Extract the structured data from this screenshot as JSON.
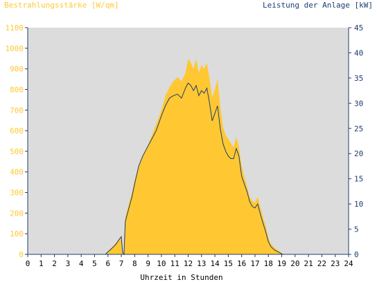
{
  "chart_data": {
    "type": "area",
    "title": "",
    "xlabel": "Uhrzeit in Stunden",
    "ylabel_left": "Bestrahlungsstärke [W/qm]",
    "ylabel_right": "Leistung der Anlage [kW]",
    "xlim": [
      0,
      24
    ],
    "ylim_left": [
      0,
      1100
    ],
    "ylim_right": [
      0,
      45
    ],
    "x_ticks": [
      "0",
      "1",
      "2",
      "3",
      "4",
      "5",
      "6",
      "7",
      "8",
      "9",
      "10",
      "11",
      "12",
      "13",
      "14",
      "15",
      "16",
      "17",
      "18",
      "19",
      "20",
      "21",
      "22",
      "23",
      "24"
    ],
    "y_ticks_left": [
      "0",
      "100",
      "200",
      "300",
      "400",
      "500",
      "600",
      "700",
      "800",
      "900",
      "1000",
      "1100"
    ],
    "y_ticks_right": [
      "0",
      "5",
      "10",
      "15",
      "20",
      "25",
      "30",
      "35",
      "40",
      "45"
    ],
    "grid": false,
    "colors": {
      "irradiance": "#ffc832",
      "power": "#1e3c6e",
      "plot_bg": "#dcdcdc",
      "axis": "#1e3c6e"
    },
    "series": [
      {
        "name": "Bestrahlungsstärke [W/qm]",
        "axis": "left",
        "style": "area",
        "x": [
          0,
          5.8,
          6,
          6.3,
          6.6,
          6.9,
          7.0,
          7.1,
          7.2,
          7.3,
          7.5,
          7.8,
          8,
          8.3,
          8.6,
          9,
          9.3,
          9.6,
          10,
          10.3,
          10.6,
          10.9,
          11.2,
          11.5,
          11.8,
          12,
          12.2,
          12.4,
          12.6,
          12.8,
          13,
          13.2,
          13.4,
          13.6,
          13.8,
          14,
          14.2,
          14.4,
          14.6,
          14.8,
          15,
          15.2,
          15.4,
          15.6,
          15.8,
          16,
          16.2,
          16.4,
          16.6,
          16.8,
          17,
          17.2,
          17.4,
          17.6,
          17.8,
          18,
          18.2,
          18.5,
          18.8,
          19.0,
          19.1,
          24
        ],
        "y": [
          0,
          0,
          15,
          35,
          55,
          80,
          85,
          10,
          0,
          180,
          230,
          300,
          360,
          430,
          480,
          530,
          580,
          630,
          700,
          770,
          810,
          840,
          860,
          840,
          880,
          950,
          930,
          900,
          950,
          880,
          920,
          900,
          930,
          850,
          760,
          800,
          850,
          720,
          620,
          580,
          560,
          540,
          520,
          570,
          520,
          430,
          380,
          330,
          280,
          260,
          250,
          280,
          230,
          180,
          140,
          80,
          50,
          30,
          15,
          5,
          0,
          0
        ]
      },
      {
        "name": "Leistung der Anlage [kW]",
        "axis": "right",
        "style": "line",
        "x": [
          0,
          5.8,
          6,
          6.3,
          6.6,
          6.9,
          7.0,
          7.1,
          7.2,
          7.3,
          7.5,
          7.8,
          8,
          8.3,
          8.6,
          9,
          9.3,
          9.6,
          10,
          10.3,
          10.6,
          10.9,
          11.2,
          11.5,
          11.8,
          12,
          12.2,
          12.4,
          12.6,
          12.8,
          13,
          13.2,
          13.4,
          13.6,
          13.8,
          14,
          14.2,
          14.4,
          14.6,
          14.8,
          15,
          15.2,
          15.4,
          15.6,
          15.8,
          16,
          16.2,
          16.4,
          16.6,
          16.8,
          17,
          17.2,
          17.4,
          17.6,
          17.8,
          18,
          18.2,
          18.5,
          18.8,
          19.0,
          19.1,
          24
        ],
        "y": [
          0,
          0,
          0.5,
          1.2,
          2.0,
          3.2,
          3.5,
          0.3,
          0,
          6.5,
          8.5,
          11.5,
          14,
          17.5,
          19.5,
          21.5,
          23,
          24.5,
          27.5,
          29.5,
          31,
          31.5,
          31.8,
          31,
          33,
          34,
          33.5,
          32.5,
          33.5,
          31.5,
          32.5,
          32,
          33,
          30,
          26.5,
          28,
          29.5,
          25,
          22,
          20.5,
          19.5,
          19,
          19,
          21,
          19.5,
          15.5,
          14,
          12.5,
          10.5,
          9.5,
          9.2,
          10,
          8,
          6.2,
          4.5,
          2.5,
          1.5,
          0.8,
          0.4,
          0.1,
          0,
          0
        ]
      }
    ]
  }
}
